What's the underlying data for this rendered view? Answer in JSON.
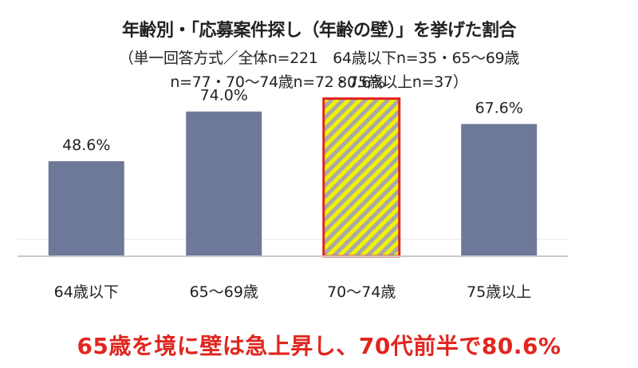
{
  "title": "年齢別・「応募案件探し（年齢の壁）」を挙げた割合",
  "subtitle_line1": "（単一回答方式／全体n=221　64歳以下n=35・65～69歳",
  "subtitle_line2": "n=77・70～74歳n=72・75歳以上n=37）",
  "footer_text": "65歳を境に壁は急上昇し、70代前半で80.6%",
  "colors": {
    "bar": "#6e7899",
    "highlight_fill": "#f2f200",
    "highlight_stripe": "#a8a8a8",
    "highlight_border": "#e0261f",
    "footer": "#e0261f",
    "axis": "#c8c8c8"
  },
  "chart_data": {
    "type": "bar",
    "categories": [
      "64歳以下",
      "65～69歳",
      "70～74歳",
      "75歳以上"
    ],
    "values": [
      48.6,
      74.0,
      80.6,
      67.6
    ],
    "value_labels": [
      "48.6%",
      "74.0%",
      "80.6%",
      "67.6%"
    ],
    "highlight_index": 2,
    "ylim": [
      0,
      100
    ],
    "grid": false,
    "legend": "none"
  }
}
